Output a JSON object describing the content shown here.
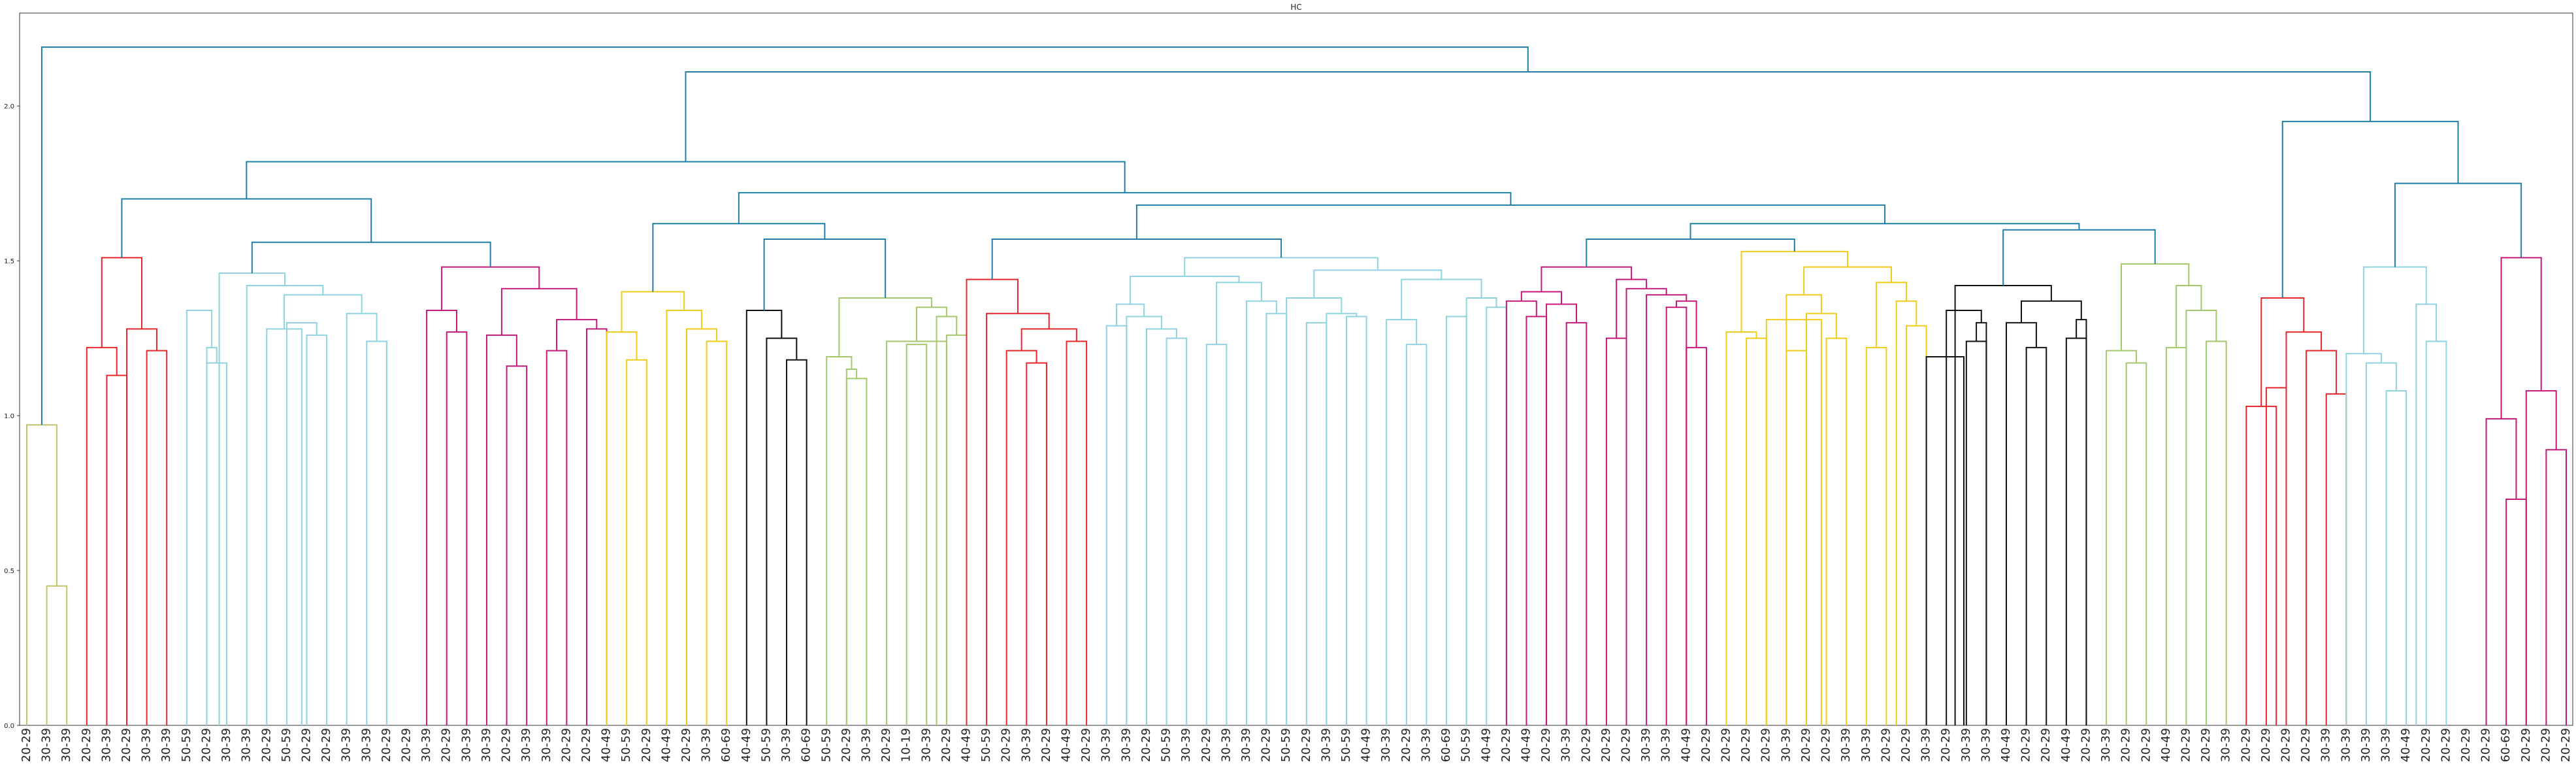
{
  "chart_data": {
    "type": "dendrogram",
    "title": "HC",
    "xlabel": "",
    "ylabel": "",
    "ylim": [
      0,
      2.3
    ],
    "yticks": [
      0.0,
      0.5,
      1.0,
      1.5,
      2.0
    ],
    "ytick_labels": [
      "0.0",
      "0.5",
      "1.0",
      "1.5",
      "2.0"
    ],
    "grid": false,
    "leaf_labels": [
      "20-29",
      "30-39",
      "30-39",
      "20-29",
      "30-39",
      "20-29",
      "30-39",
      "30-39",
      "50-59",
      "20-29",
      "30-39",
      "30-39",
      "20-29",
      "50-59",
      "20-29",
      "20-29",
      "30-39",
      "30-39",
      "20-29",
      "20-29",
      "30-39",
      "20-29",
      "30-39",
      "30-39",
      "20-29",
      "30-39",
      "30-39",
      "20-29",
      "20-29",
      "40-49",
      "50-59",
      "20-29",
      "40-49",
      "20-29",
      "30-39",
      "60-69",
      "40-49",
      "50-59",
      "30-39",
      "60-69",
      "50-59",
      "20-29",
      "30-39",
      "20-29",
      "10-19",
      "30-39",
      "20-29",
      "40-49",
      "50-59",
      "20-29",
      "30-39",
      "20-29",
      "40-49",
      "20-29",
      "30-39",
      "30-39",
      "20-29",
      "50-59",
      "30-39",
      "20-29",
      "30-39",
      "30-39",
      "20-29",
      "50-59",
      "20-29",
      "30-39",
      "50-59",
      "40-49",
      "30-39",
      "20-29",
      "30-39",
      "60-69",
      "50-59",
      "40-49",
      "20-29",
      "40-49",
      "20-29",
      "30-39",
      "20-29",
      "20-29",
      "20-29",
      "30-39",
      "30-39",
      "40-49",
      "20-29",
      "20-29",
      "20-29",
      "20-29",
      "30-39",
      "20-29",
      "20-29",
      "30-39",
      "30-39",
      "20-29",
      "20-29",
      "30-39",
      "20-29",
      "30-39",
      "30-39",
      "40-49",
      "20-29",
      "20-29",
      "40-49",
      "20-29",
      "30-39",
      "20-29",
      "20-29",
      "40-49",
      "20-29",
      "20-29",
      "30-39",
      "20-29",
      "20-29",
      "20-29",
      "20-29",
      "30-39",
      "30-39",
      "30-39",
      "30-39",
      "40-49",
      "20-29",
      "20-29",
      "20-29",
      "20-29",
      "60-69",
      "20-29",
      "20-29",
      "20-29"
    ],
    "colors": {
      "above_threshold": "#1f7fa6",
      "clusters": [
        "#c2c26a",
        "#e8262a",
        "#8fd3e0",
        "#c4187a",
        "#f0cc1a",
        "#111111",
        "#a3c96b"
      ]
    },
    "links": [
      {
        "left": 1,
        "right": 2,
        "height": 0.45,
        "color": "#c2c26a"
      },
      {
        "left": 0,
        "right": 1.5,
        "height": 0.97,
        "color": "#c2c26a"
      },
      {
        "left": 4,
        "right": 5,
        "height": 1.13,
        "color": "#e8262a"
      },
      {
        "left": 3,
        "right": 4.5,
        "height": 1.22,
        "color": "#e8262a"
      },
      {
        "left": 6,
        "right": 7,
        "height": 1.21,
        "color": "#e8262a"
      },
      {
        "left": 5,
        "right": 6.5,
        "height": 1.28,
        "color": "#e8262a"
      },
      {
        "left": 3.75,
        "right": 5.75,
        "height": 1.51,
        "color": "#e8262a"
      },
      {
        "left": 9,
        "right": 10,
        "height": 1.17,
        "color": "#8fd3e0"
      },
      {
        "left": 9,
        "right": 9.5,
        "height": 1.22,
        "color": "#8fd3e0"
      },
      {
        "left": 8,
        "right": 9.25,
        "height": 1.34,
        "color": "#8fd3e0"
      },
      {
        "left": 14,
        "right": 15,
        "height": 1.26,
        "color": "#8fd3e0"
      },
      {
        "left": 13,
        "right": 14.5,
        "height": 1.3,
        "color": "#8fd3e0"
      },
      {
        "left": 12,
        "right": 13.75,
        "height": 1.28,
        "color": "#8fd3e0"
      },
      {
        "left": 17,
        "right": 18,
        "height": 1.24,
        "color": "#8fd3e0"
      },
      {
        "left": 16,
        "right": 17.5,
        "height": 1.33,
        "color": "#8fd3e0"
      },
      {
        "left": 12.875,
        "right": 16.75,
        "height": 1.39,
        "color": "#8fd3e0"
      },
      {
        "left": 11,
        "right": 14.8125,
        "height": 1.42,
        "color": "#8fd3e0"
      },
      {
        "left": 9.625,
        "right": 12.90625,
        "height": 1.46,
        "color": "#8fd3e0"
      },
      {
        "left": 21,
        "right": 22,
        "height": 1.27,
        "color": "#c4187a"
      },
      {
        "left": 20,
        "right": 21.5,
        "height": 1.34,
        "color": "#c4187a"
      },
      {
        "left": 24,
        "right": 25,
        "height": 1.16,
        "color": "#c4187a"
      },
      {
        "left": 23,
        "right": 24.5,
        "height": 1.26,
        "color": "#c4187a"
      },
      {
        "left": 26,
        "right": 27,
        "height": 1.21,
        "color": "#c4187a"
      },
      {
        "left": 28,
        "right": 29,
        "height": 1.28,
        "color": "#c4187a"
      },
      {
        "left": 26.5,
        "right": 28.5,
        "height": 1.31,
        "color": "#c4187a"
      },
      {
        "left": 23.75,
        "right": 27.5,
        "height": 1.41,
        "color": "#c4187a"
      },
      {
        "left": 20.75,
        "right": 25.625,
        "height": 1.48,
        "color": "#c4187a"
      },
      {
        "left": 11.265625,
        "right": 23.1875,
        "height": 1.56,
        "color": "#1f7fa6"
      },
      {
        "left": 4.75,
        "right": 17.2265625,
        "height": 1.7,
        "color": "#1f7fa6"
      },
      {
        "left": 30,
        "right": 31,
        "height": 1.18,
        "color": "#f0cc1a"
      },
      {
        "left": 29,
        "right": 30.5,
        "height": 1.27,
        "color": "#f0cc1a"
      },
      {
        "left": 34,
        "right": 35,
        "height": 1.24,
        "color": "#f0cc1a"
      },
      {
        "left": 33,
        "right": 34.5,
        "height": 1.28,
        "color": "#f0cc1a"
      },
      {
        "left": 32,
        "right": 33.75,
        "height": 1.34,
        "color": "#f0cc1a"
      },
      {
        "left": 29.75,
        "right": 32.875,
        "height": 1.4,
        "color": "#f0cc1a"
      },
      {
        "left": 38,
        "right": 39,
        "height": 1.18,
        "color": "#111111"
      },
      {
        "left": 37,
        "right": 38.5,
        "height": 1.25,
        "color": "#111111"
      },
      {
        "left": 36,
        "right": 37.75,
        "height": 1.34,
        "color": "#111111"
      },
      {
        "left": 41,
        "right": 42,
        "height": 1.12,
        "color": "#a3c96b"
      },
      {
        "left": 41,
        "right": 41.5,
        "height": 1.15,
        "color": "#a3c96b"
      },
      {
        "left": 40,
        "right": 41.25,
        "height": 1.19,
        "color": "#a3c96b"
      },
      {
        "left": 44,
        "right": 45,
        "height": 1.23,
        "color": "#a3c96b"
      },
      {
        "left": 46,
        "right": 47,
        "height": 1.26,
        "color": "#a3c96b"
      },
      {
        "left": 45.5,
        "right": 46.5,
        "height": 1.32,
        "color": "#a3c96b"
      },
      {
        "left": 43,
        "right": 46,
        "height": 1.24,
        "color": "#a3c96b"
      },
      {
        "left": 44.5,
        "right": 46,
        "height": 1.35,
        "color": "#a3c96b"
      },
      {
        "left": 40.625,
        "right": 45.25,
        "height": 1.38,
        "color": "#a3c96b"
      },
      {
        "left": 36.875,
        "right": 42.9375,
        "height": 1.57,
        "color": "#1f7fa6"
      },
      {
        "left": 31.3125,
        "right": 39.90625,
        "height": 1.62,
        "color": "#1f7fa6"
      },
      {
        "left": 50,
        "right": 51,
        "height": 1.17,
        "color": "#e8262a"
      },
      {
        "left": 49,
        "right": 50.5,
        "height": 1.21,
        "color": "#e8262a"
      },
      {
        "left": 52,
        "right": 53,
        "height": 1.24,
        "color": "#e8262a"
      },
      {
        "left": 49.75,
        "right": 52.5,
        "height": 1.28,
        "color": "#e8262a"
      },
      {
        "left": 48,
        "right": 51.125,
        "height": 1.33,
        "color": "#e8262a"
      },
      {
        "left": 47,
        "right": 49.5625,
        "height": 1.44,
        "color": "#e8262a"
      },
      {
        "left": 54,
        "right": 55,
        "height": 1.29,
        "color": "#8fd3e0"
      },
      {
        "left": 57,
        "right": 58,
        "height": 1.25,
        "color": "#8fd3e0"
      },
      {
        "left": 56,
        "right": 57.5,
        "height": 1.28,
        "color": "#8fd3e0"
      },
      {
        "left": 55,
        "right": 56.75,
        "height": 1.32,
        "color": "#8fd3e0"
      },
      {
        "left": 54.5,
        "right": 55.875,
        "height": 1.36,
        "color": "#8fd3e0"
      },
      {
        "left": 59,
        "right": 60,
        "height": 1.23,
        "color": "#8fd3e0"
      },
      {
        "left": 62,
        "right": 63,
        "height": 1.33,
        "color": "#8fd3e0"
      },
      {
        "left": 61,
        "right": 62.5,
        "height": 1.37,
        "color": "#8fd3e0"
      },
      {
        "left": 59.5,
        "right": 61.75,
        "height": 1.43,
        "color": "#8fd3e0"
      },
      {
        "left": 55.1875,
        "right": 60.625,
        "height": 1.45,
        "color": "#8fd3e0"
      },
      {
        "left": 64,
        "right": 65,
        "height": 1.3,
        "color": "#8fd3e0"
      },
      {
        "left": 66,
        "right": 67,
        "height": 1.32,
        "color": "#8fd3e0"
      },
      {
        "left": 65,
        "right": 66.5,
        "height": 1.33,
        "color": "#8fd3e0"
      },
      {
        "left": 63,
        "right": 65.75,
        "height": 1.38,
        "color": "#8fd3e0"
      },
      {
        "left": 69,
        "right": 70,
        "height": 1.23,
        "color": "#8fd3e0"
      },
      {
        "left": 68,
        "right": 69.5,
        "height": 1.31,
        "color": "#8fd3e0"
      },
      {
        "left": 71,
        "right": 72,
        "height": 1.32,
        "color": "#8fd3e0"
      },
      {
        "left": 73,
        "right": 74,
        "height": 1.35,
        "color": "#8fd3e0"
      },
      {
        "left": 72,
        "right": 73.5,
        "height": 1.38,
        "color": "#8fd3e0"
      },
      {
        "left": 68.75,
        "right": 72.75,
        "height": 1.44,
        "color": "#8fd3e0"
      },
      {
        "left": 64.375,
        "right": 70.75,
        "height": 1.47,
        "color": "#8fd3e0"
      },
      {
        "left": 57.90625,
        "right": 67.5625,
        "height": 1.51,
        "color": "#8fd3e0"
      },
      {
        "left": 48.28125,
        "right": 62.734375,
        "height": 1.57,
        "color": "#1f7fa6"
      },
      {
        "left": 75,
        "right": 76,
        "height": 1.32,
        "color": "#c4187a"
      },
      {
        "left": 74,
        "right": 75.5,
        "height": 1.37,
        "color": "#c4187a"
      },
      {
        "left": 77,
        "right": 78,
        "height": 1.3,
        "color": "#c4187a"
      },
      {
        "left": 76,
        "right": 77.5,
        "height": 1.36,
        "color": "#c4187a"
      },
      {
        "left": 74.75,
        "right": 76.75,
        "height": 1.4,
        "color": "#c4187a"
      },
      {
        "left": 79,
        "right": 80,
        "height": 1.25,
        "color": "#c4187a"
      },
      {
        "left": 82,
        "right": 83,
        "height": 1.35,
        "color": "#c4187a"
      },
      {
        "left": 83,
        "right": 84,
        "height": 1.22,
        "color": "#c4187a"
      },
      {
        "left": 82.5,
        "right": 83.5,
        "height": 1.37,
        "color": "#c4187a"
      },
      {
        "left": 81,
        "right": 83,
        "height": 1.39,
        "color": "#c4187a"
      },
      {
        "left": 80,
        "right": 82,
        "height": 1.41,
        "color": "#c4187a"
      },
      {
        "left": 79.5,
        "right": 81,
        "height": 1.44,
        "color": "#c4187a"
      },
      {
        "left": 75.75,
        "right": 80.25,
        "height": 1.48,
        "color": "#c4187a"
      },
      {
        "left": 86,
        "right": 87,
        "height": 1.25,
        "color": "#f0cc1a"
      },
      {
        "left": 85,
        "right": 86.5,
        "height": 1.27,
        "color": "#f0cc1a"
      },
      {
        "left": 88,
        "right": 89,
        "height": 1.21,
        "color": "#f0cc1a"
      },
      {
        "left": 90,
        "right": 91,
        "height": 1.25,
        "color": "#f0cc1a"
      },
      {
        "left": 89,
        "right": 90.5,
        "height": 1.33,
        "color": "#f0cc1a"
      },
      {
        "left": 87,
        "right": 89.75,
        "height": 1.31,
        "color": "#f0cc1a"
      },
      {
        "left": 88,
        "right": 89.75,
        "height": 1.39,
        "color": "#f0cc1a"
      },
      {
        "left": 92,
        "right": 93,
        "height": 1.22,
        "color": "#f0cc1a"
      },
      {
        "left": 94,
        "right": 95,
        "height": 1.29,
        "color": "#f0cc1a"
      },
      {
        "left": 93.5,
        "right": 94.5,
        "height": 1.37,
        "color": "#f0cc1a"
      },
      {
        "left": 92.5,
        "right": 94,
        "height": 1.43,
        "color": "#f0cc1a"
      },
      {
        "left": 88.875,
        "right": 93.25,
        "height": 1.48,
        "color": "#f0cc1a"
      },
      {
        "left": 85.75,
        "right": 91.0625,
        "height": 1.53,
        "color": "#f0cc1a"
      },
      {
        "left": 78,
        "right": 88.40625,
        "height": 1.57,
        "color": "#1f7fa6"
      },
      {
        "left": 97,
        "right": 98,
        "height": 1.24,
        "color": "#111111"
      },
      {
        "left": 98,
        "right": 97.5,
        "height": 1.3,
        "color": "#111111"
      },
      {
        "left": 96,
        "right": 97.75,
        "height": 1.34,
        "color": "#111111"
      },
      {
        "left": 95,
        "right": 96.875,
        "height": 1.19,
        "color": "#111111"
      },
      {
        "left": 100,
        "right": 101,
        "height": 1.22,
        "color": "#111111"
      },
      {
        "left": 102,
        "right": 103,
        "height": 1.25,
        "color": "#111111"
      },
      {
        "left": 102.5,
        "right": 103,
        "height": 1.31,
        "color": "#111111"
      },
      {
        "left": 99,
        "right": 100.5,
        "height": 1.3,
        "color": "#111111"
      },
      {
        "left": 99.75,
        "right": 102.75,
        "height": 1.37,
        "color": "#111111"
      },
      {
        "left": 96.4375,
        "right": 101.25,
        "height": 1.42,
        "color": "#111111"
      },
      {
        "left": 105,
        "right": 106,
        "height": 1.17,
        "color": "#a3c96b"
      },
      {
        "left": 104,
        "right": 105.5,
        "height": 1.21,
        "color": "#a3c96b"
      },
      {
        "left": 107,
        "right": 108,
        "height": 1.22,
        "color": "#a3c96b"
      },
      {
        "left": 109,
        "right": 110,
        "height": 1.24,
        "color": "#a3c96b"
      },
      {
        "left": 108,
        "right": 109.5,
        "height": 1.34,
        "color": "#a3c96b"
      },
      {
        "left": 107.5,
        "right": 108.75,
        "height": 1.42,
        "color": "#a3c96b"
      },
      {
        "left": 104.75,
        "right": 108.125,
        "height": 1.49,
        "color": "#a3c96b"
      },
      {
        "left": 98.84375,
        "right": 106.4375,
        "height": 1.6,
        "color": "#1f7fa6"
      },
      {
        "left": 83.203125,
        "right": 102.640625,
        "height": 1.62,
        "color": "#1f7fa6"
      },
      {
        "left": 55.5078125,
        "right": 92.921875,
        "height": 1.68,
        "color": "#1f7fa6"
      },
      {
        "left": 35.609375,
        "right": 74.21484375,
        "height": 1.72,
        "color": "#1f7fa6"
      },
      {
        "left": 10.98828125,
        "right": 54.912109375,
        "height": 1.82,
        "color": "#1f7fa6"
      },
      {
        "left": 112,
        "right": 113,
        "height": 1.09,
        "color": "#e8262a"
      },
      {
        "left": 115,
        "right": 116,
        "height": 1.07,
        "color": "#e8262a"
      },
      {
        "left": 114,
        "right": 115.5,
        "height": 1.21,
        "color": "#e8262a"
      },
      {
        "left": 113,
        "right": 114.75,
        "height": 1.27,
        "color": "#e8262a"
      },
      {
        "left": 111,
        "right": 112.5,
        "height": 1.03,
        "color": "#e8262a"
      },
      {
        "left": 111.75,
        "right": 113.875,
        "height": 1.38,
        "color": "#e8262a"
      },
      {
        "left": 118,
        "right": 119,
        "height": 1.08,
        "color": "#8fd3e0"
      },
      {
        "left": 117,
        "right": 118.5,
        "height": 1.17,
        "color": "#8fd3e0"
      },
      {
        "left": 116,
        "right": 117.75,
        "height": 1.2,
        "color": "#8fd3e0"
      },
      {
        "left": 120,
        "right": 121,
        "height": 1.24,
        "color": "#8fd3e0"
      },
      {
        "left": 119.5,
        "right": 120.5,
        "height": 1.36,
        "color": "#8fd3e0"
      },
      {
        "left": 116.875,
        "right": 120,
        "height": 1.48,
        "color": "#8fd3e0"
      },
      {
        "left": 124,
        "right": 125,
        "height": 0.73,
        "color": "#c4187a"
      },
      {
        "left": 123,
        "right": 124.5,
        "height": 0.99,
        "color": "#c4187a"
      },
      {
        "left": 126,
        "right": 127,
        "height": 0.89,
        "color": "#c4187a"
      },
      {
        "left": 125,
        "right": 126.5,
        "height": 1.08,
        "color": "#c4187a"
      },
      {
        "left": 123.75,
        "right": 125.75,
        "height": 1.51,
        "color": "#c4187a"
      },
      {
        "left": 118.4375,
        "right": 124.75,
        "height": 1.75,
        "color": "#1f7fa6"
      },
      {
        "left": 112.8125,
        "right": 121.59375,
        "height": 1.95,
        "color": "#1f7fa6"
      },
      {
        "left": 32.9501953125,
        "right": 117.203125,
        "height": 2.11,
        "color": "#1f7fa6"
      },
      {
        "left": 0.75,
        "right": 75.07666015625,
        "height": 2.19,
        "color": "#1f7fa6"
      }
    ]
  }
}
